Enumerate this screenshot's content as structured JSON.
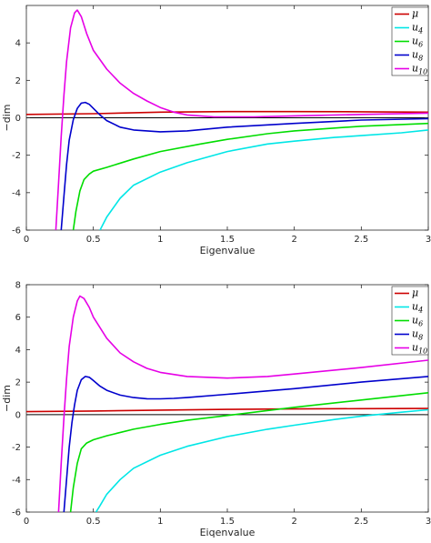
{
  "chart_data": [
    {
      "type": "line",
      "xlabel": "Eigenvalue",
      "ylabel": "−dim",
      "xlim": [
        0,
        3
      ],
      "ylim": [
        -6,
        6
      ],
      "xticks": [
        0,
        0.5,
        1,
        1.5,
        2,
        2.5,
        3
      ],
      "xtick_labels": [
        "0",
        "0.5",
        "1",
        "1.5",
        "2",
        "2.5",
        "3"
      ],
      "yticks": [
        -6,
        -4,
        -2,
        0,
        2,
        4
      ],
      "ytick_labels": [
        "-6",
        "-4",
        "-2",
        "0",
        "2",
        "4"
      ],
      "grid": false,
      "legend": "top-right",
      "zero_line": true,
      "series": [
        {
          "name": "μ",
          "color": "#cc0000",
          "x": [
            0,
            0.5,
            1,
            1.5,
            2,
            2.5,
            3
          ],
          "y": [
            0.18,
            0.22,
            0.3,
            0.33,
            0.33,
            0.32,
            0.3
          ]
        },
        {
          "name": "u₄",
          "color": "#00e6e6",
          "x": [
            0.55,
            0.6,
            0.7,
            0.8,
            1.0,
            1.2,
            1.5,
            1.8,
            2.0,
            2.3,
            2.5,
            2.8,
            3.0
          ],
          "y": [
            -6,
            -5.3,
            -4.3,
            -3.6,
            -2.9,
            -2.4,
            -1.8,
            -1.4,
            -1.25,
            -1.05,
            -0.95,
            -0.8,
            -0.65
          ]
        },
        {
          "name": "u₆",
          "color": "#00dd00",
          "x": [
            0.35,
            0.37,
            0.4,
            0.43,
            0.47,
            0.5,
            0.6,
            0.8,
            1.0,
            1.3,
            1.5,
            1.8,
            2.0,
            2.5,
            3.0
          ],
          "y": [
            -6,
            -5.0,
            -3.9,
            -3.3,
            -3.0,
            -2.85,
            -2.65,
            -2.2,
            -1.8,
            -1.4,
            -1.15,
            -0.85,
            -0.7,
            -0.45,
            -0.3
          ]
        },
        {
          "name": "u₈",
          "color": "#0000cc",
          "x": [
            0.26,
            0.28,
            0.3,
            0.32,
            0.35,
            0.38,
            0.41,
            0.44,
            0.47,
            0.5,
            0.55,
            0.6,
            0.7,
            0.8,
            1.0,
            1.2,
            1.5,
            2.0,
            2.5,
            3.0
          ],
          "y": [
            -6,
            -4.2,
            -2.5,
            -1.2,
            -0.1,
            0.5,
            0.78,
            0.82,
            0.72,
            0.5,
            0.15,
            -0.15,
            -0.5,
            -0.65,
            -0.75,
            -0.7,
            -0.5,
            -0.3,
            -0.12,
            -0.05
          ]
        },
        {
          "name": "u₁₀",
          "color": "#e600e6",
          "x": [
            0.22,
            0.24,
            0.26,
            0.28,
            0.3,
            0.33,
            0.36,
            0.38,
            0.41,
            0.45,
            0.5,
            0.6,
            0.7,
            0.8,
            0.9,
            1.0,
            1.1,
            1.2,
            1.4,
            1.7,
            2.0,
            2.5,
            3.0
          ],
          "y": [
            -6,
            -3.5,
            -1.0,
            1.2,
            3.0,
            4.8,
            5.6,
            5.75,
            5.4,
            4.5,
            3.6,
            2.6,
            1.85,
            1.3,
            0.9,
            0.55,
            0.3,
            0.15,
            0.05,
            0.05,
            0.1,
            0.18,
            0.25
          ]
        }
      ]
    },
    {
      "type": "line",
      "xlabel": "Eiqenvalue",
      "ylabel": "−dim",
      "xlim": [
        0,
        3
      ],
      "ylim": [
        -6,
        8
      ],
      "xticks": [
        0,
        0.5,
        1,
        1.5,
        2,
        2.5,
        3
      ],
      "xtick_labels": [
        "0",
        "0.5",
        "1",
        "1.5",
        "2",
        "2.5",
        "3"
      ],
      "yticks": [
        -6,
        -4,
        -2,
        0,
        2,
        4,
        6,
        8
      ],
      "ytick_labels": [
        "-6",
        "-4",
        "-2",
        "0",
        "2",
        "4",
        "6",
        "8"
      ],
      "grid": false,
      "legend": "top-right",
      "zero_line": true,
      "series": [
        {
          "name": "μ",
          "color": "#cc0000",
          "x": [
            0,
            0.5,
            1,
            1.5,
            2,
            2.5,
            3
          ],
          "y": [
            0.18,
            0.22,
            0.28,
            0.32,
            0.35,
            0.37,
            0.38
          ]
        },
        {
          "name": "u₄",
          "color": "#00e6e6",
          "x": [
            0.52,
            0.55,
            0.6,
            0.7,
            0.8,
            1.0,
            1.2,
            1.5,
            1.8,
            2.0,
            2.3,
            2.5,
            2.8,
            3.0
          ],
          "y": [
            -6,
            -5.6,
            -4.9,
            -4.0,
            -3.3,
            -2.5,
            -1.95,
            -1.35,
            -0.9,
            -0.65,
            -0.3,
            -0.1,
            0.15,
            0.3
          ]
        },
        {
          "name": "u₆",
          "color": "#00dd00",
          "x": [
            0.33,
            0.35,
            0.38,
            0.41,
            0.45,
            0.5,
            0.6,
            0.8,
            1.0,
            1.2,
            1.5,
            2.0,
            2.5,
            3.0
          ],
          "y": [
            -6,
            -4.5,
            -3.0,
            -2.1,
            -1.75,
            -1.55,
            -1.3,
            -0.9,
            -0.6,
            -0.35,
            -0.05,
            0.45,
            0.9,
            1.35
          ]
        },
        {
          "name": "u₈",
          "color": "#0000cc",
          "x": [
            0.28,
            0.3,
            0.32,
            0.34,
            0.36,
            0.38,
            0.41,
            0.44,
            0.47,
            0.5,
            0.55,
            0.6,
            0.7,
            0.8,
            0.9,
            1.0,
            1.1,
            1.2,
            1.5,
            2.0,
            2.5,
            3.0
          ],
          "y": [
            -6,
            -4.0,
            -2.0,
            -0.5,
            0.6,
            1.5,
            2.15,
            2.35,
            2.3,
            2.1,
            1.75,
            1.5,
            1.2,
            1.05,
            0.98,
            0.97,
            1.0,
            1.05,
            1.25,
            1.6,
            2.0,
            2.35
          ]
        },
        {
          "name": "u₁₀",
          "color": "#e600e6",
          "x": [
            0.24,
            0.26,
            0.28,
            0.3,
            0.32,
            0.35,
            0.38,
            0.4,
            0.43,
            0.47,
            0.5,
            0.6,
            0.7,
            0.8,
            0.9,
            1.0,
            1.2,
            1.5,
            1.8,
            2.0,
            2.5,
            3.0
          ],
          "y": [
            -6,
            -3.0,
            -0.2,
            2.2,
            4.2,
            6.0,
            7.0,
            7.3,
            7.15,
            6.6,
            6.0,
            4.7,
            3.8,
            3.25,
            2.85,
            2.6,
            2.35,
            2.25,
            2.35,
            2.5,
            2.9,
            3.35
          ]
        }
      ]
    }
  ]
}
